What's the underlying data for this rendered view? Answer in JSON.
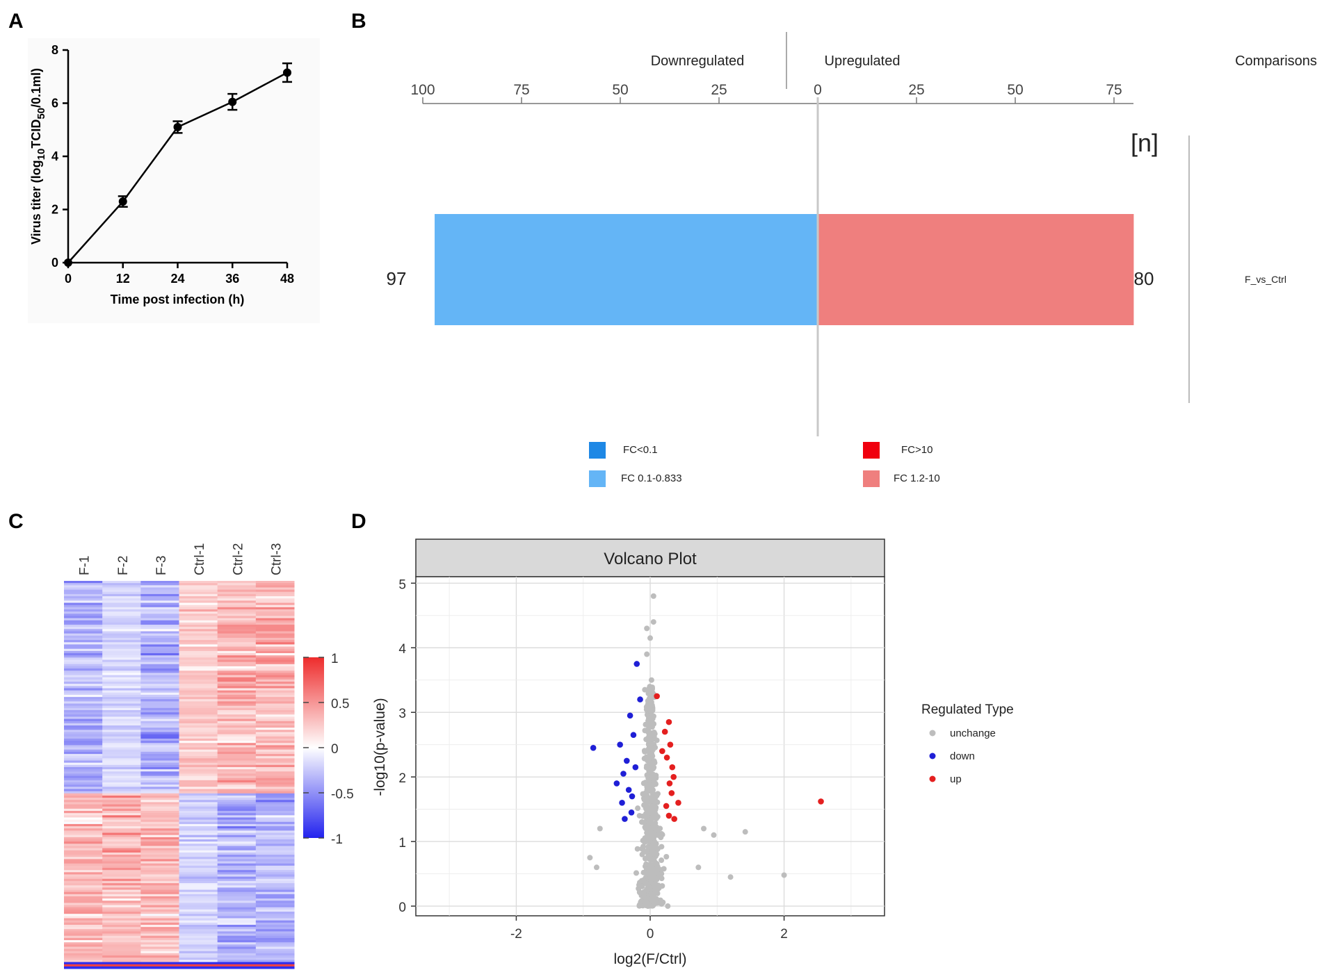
{
  "chart_data": [
    {
      "panel": "A",
      "type": "line",
      "x": [
        0,
        12,
        24,
        36,
        48
      ],
      "y": [
        0,
        2.3,
        5.1,
        6.05,
        7.15
      ],
      "error": [
        0,
        0.2,
        0.22,
        0.3,
        0.35
      ],
      "xticks": [
        "0",
        "12",
        "24",
        "36",
        "48"
      ],
      "yticks": [
        "0",
        "2",
        "4",
        "6",
        "8"
      ],
      "xlim": [
        0,
        48
      ],
      "ylim": [
        0,
        8
      ],
      "xlabel": "Time post infection (h)",
      "ylabel_parts": [
        "Virus titer (log",
        "10",
        "TCID",
        "50",
        "/0.1ml)"
      ]
    },
    {
      "panel": "B",
      "type": "bar",
      "orientation": "horizontal",
      "categories": [
        "F_vs_Ctrl"
      ],
      "down_value": 97,
      "up_value": 80,
      "down_label": "97",
      "up_label": "80",
      "left_ticks": [
        "100",
        "75",
        "50",
        "25",
        "0"
      ],
      "right_ticks": [
        "25",
        "50",
        "75"
      ],
      "left_tick_values": [
        100,
        75,
        50,
        25,
        0
      ],
      "right_tick_values": [
        25,
        50,
        75
      ],
      "axis_range": [
        -100,
        80
      ],
      "header_down": "Downregulated",
      "header_up": "Upregulated",
      "header_comparisons": "Comparisons",
      "n_label": "[n]",
      "legend": [
        {
          "label": "FC<0.1",
          "color": "#1e88e5"
        },
        {
          "label": "FC 0.1-0.833",
          "color": "#64b5f6"
        },
        {
          "label": "FC>10",
          "color": "#f0000e"
        },
        {
          "label": "FC 1.2-10",
          "color": "#ef7f7e"
        }
      ]
    },
    {
      "panel": "C",
      "type": "heatmap",
      "columns": [
        "F-1",
        "F-2",
        "F-3",
        "Ctrl-1",
        "Ctrl-2",
        "Ctrl-3"
      ],
      "row_count": 177,
      "value_range": [
        -1,
        1
      ],
      "colorbar_ticks": [
        "1",
        "0.5",
        "0",
        "-0.5",
        "-1"
      ],
      "colorbar_values": [
        1,
        0.5,
        0,
        -0.5,
        -1
      ],
      "colors": {
        "high": "#ee2c2c",
        "mid": "#ffffff",
        "low": "#2222ee"
      }
    },
    {
      "panel": "D",
      "type": "scatter",
      "title": "Volcano Plot",
      "xlabel": "log2(F/Ctrl)",
      "ylabel": "-log10(p-value)",
      "xlim": [
        -3.5,
        3.5
      ],
      "ylim": [
        -0.15,
        5.1
      ],
      "xticks": [
        "-2",
        "0",
        "2"
      ],
      "xtick_values": [
        -2,
        0,
        2
      ],
      "yticks": [
        "0",
        "1",
        "2",
        "3",
        "4",
        "5"
      ],
      "ytick_values": [
        0,
        1,
        2,
        3,
        4,
        5
      ],
      "legend_title": "Regulated Type",
      "legend": [
        {
          "label": "unchange",
          "color": "#bdbdbd"
        },
        {
          "label": "down",
          "color": "#1f1fd6"
        },
        {
          "label": "up",
          "color": "#e41f1f"
        }
      ],
      "highlight_points": {
        "up": [
          [
            2.55,
            1.62
          ],
          [
            0.1,
            3.25
          ],
          [
            0.28,
            2.85
          ],
          [
            0.3,
            2.5
          ],
          [
            0.25,
            2.3
          ],
          [
            0.35,
            2.0
          ],
          [
            0.32,
            1.75
          ],
          [
            0.42,
            1.6
          ],
          [
            0.28,
            1.4
          ],
          [
            0.22,
            2.7
          ],
          [
            0.33,
            2.15
          ],
          [
            0.24,
            1.55
          ],
          [
            0.29,
            1.9
          ],
          [
            0.18,
            2.4
          ],
          [
            0.36,
            1.35
          ]
        ],
        "down": [
          [
            -0.85,
            2.45
          ],
          [
            -0.2,
            3.75
          ],
          [
            -0.15,
            3.2
          ],
          [
            -0.3,
            2.95
          ],
          [
            -0.25,
            2.65
          ],
          [
            -0.45,
            2.5
          ],
          [
            -0.35,
            2.25
          ],
          [
            -0.4,
            2.05
          ],
          [
            -0.32,
            1.8
          ],
          [
            -0.42,
            1.6
          ],
          [
            -0.28,
            1.45
          ],
          [
            -0.22,
            2.15
          ],
          [
            -0.38,
            1.35
          ],
          [
            -0.5,
            1.9
          ],
          [
            -0.27,
            1.7
          ]
        ],
        "unchange_outliers": [
          [
            2.0,
            0.48
          ],
          [
            1.42,
            1.15
          ],
          [
            1.2,
            0.45
          ],
          [
            0.95,
            1.1
          ],
          [
            0.8,
            1.2
          ],
          [
            0.72,
            0.6
          ],
          [
            -0.75,
            1.2
          ],
          [
            -0.9,
            0.75
          ],
          [
            -0.8,
            0.6
          ],
          [
            0.05,
            4.8
          ],
          [
            -0.05,
            4.3
          ],
          [
            0.0,
            4.15
          ],
          [
            0.05,
            4.4
          ],
          [
            -0.05,
            3.9
          ],
          [
            0.02,
            3.5
          ],
          [
            -0.08,
            3.35
          ]
        ]
      }
    }
  ]
}
